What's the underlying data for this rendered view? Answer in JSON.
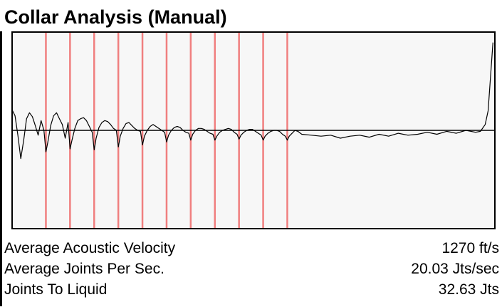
{
  "title": "Collar Analysis (Manual)",
  "colors": {
    "plot_background": "#f7f7f7",
    "trace": "#000000",
    "collar_marker": "#f07f7f",
    "baseline": "#000000"
  },
  "stats": [
    {
      "label": "Average Acoustic Velocity",
      "value": "1270 ft/s"
    },
    {
      "label": "Average Joints Per Sec.",
      "value": "20.03 Jts/sec"
    },
    {
      "label": "Joints To Liquid",
      "value": "32.63 Jts"
    }
  ],
  "chart_data": {
    "type": "line",
    "title": "",
    "xlabel": "",
    "ylabel": "",
    "xlim": [
      0,
      100
    ],
    "ylim": [
      -1,
      1
    ],
    "grid": false,
    "baseline_y": 0,
    "collar_markers_x": [
      7,
      12,
      17,
      22,
      27,
      32,
      37,
      42,
      47,
      52,
      57
    ],
    "series": [
      {
        "x": [
          0,
          0.6,
          1.2,
          1.8,
          2.4,
          3.0,
          3.6,
          4.2,
          4.8,
          5.4,
          6.0,
          6.6,
          7.0,
          7.4,
          8.0,
          8.6,
          9.2,
          9.8,
          10.4,
          11.0,
          11.6,
          12.0,
          12.4,
          13.0,
          13.6,
          14.2,
          14.8,
          15.4,
          16.0,
          16.6,
          17.0,
          17.4,
          18.0,
          18.6,
          19.2,
          19.8,
          20.4,
          21.0,
          21.6,
          22.0,
          22.4,
          23.0,
          23.6,
          24.2,
          24.8,
          25.4,
          26.0,
          26.6,
          27.0,
          27.4,
          28.0,
          28.6,
          29.2,
          29.8,
          30.4,
          31.0,
          31.6,
          32.0,
          32.4,
          33.0,
          33.6,
          34.2,
          34.8,
          35.4,
          36.0,
          36.6,
          37.0,
          37.4,
          38.0,
          38.6,
          39.2,
          39.8,
          40.4,
          41.0,
          41.6,
          42.0,
          42.4,
          43.0,
          43.6,
          44.2,
          44.8,
          45.4,
          46.0,
          46.6,
          47.0,
          47.4,
          48.0,
          48.6,
          49.2,
          49.8,
          50.4,
          51.0,
          51.6,
          52.0,
          52.4,
          53.0,
          53.6,
          54.2,
          54.8,
          55.4,
          56.0,
          56.6,
          57.0,
          57.4,
          58.0,
          58.6,
          59.2,
          60,
          62,
          64,
          66,
          68,
          70,
          72,
          74,
          76,
          78,
          80,
          82,
          84,
          86,
          88,
          90,
          92,
          94,
          96,
          97,
          98,
          98.6,
          99.1,
          99.6
        ],
        "y": [
          0.21,
          0.15,
          -0.05,
          -0.29,
          -0.1,
          0.12,
          0.18,
          0.14,
          0.05,
          -0.05,
          0.1,
          0.0,
          -0.22,
          -0.12,
          0.05,
          0.15,
          0.18,
          0.12,
          0.06,
          -0.08,
          0.08,
          -0.19,
          -0.1,
          0.02,
          0.1,
          0.12,
          0.13,
          0.1,
          0.04,
          -0.02,
          -0.2,
          -0.08,
          0.03,
          0.08,
          0.1,
          0.09,
          0.06,
          0.02,
          0.0,
          -0.17,
          -0.06,
          0.02,
          0.07,
          0.08,
          0.05,
          0.02,
          0.0,
          -0.01,
          -0.15,
          -0.06,
          0.0,
          0.04,
          0.06,
          0.04,
          0.02,
          0.0,
          -0.02,
          -0.12,
          -0.05,
          0.0,
          0.03,
          0.04,
          0.03,
          0.0,
          -0.02,
          -0.03,
          -0.1,
          -0.04,
          0.0,
          0.02,
          0.02,
          0.01,
          -0.01,
          -0.03,
          -0.04,
          -0.1,
          -0.06,
          -0.02,
          0.0,
          0.01,
          0.02,
          0.01,
          -0.02,
          -0.04,
          -0.09,
          -0.05,
          -0.02,
          0.0,
          0.01,
          0.01,
          -0.01,
          -0.03,
          -0.05,
          -0.1,
          -0.06,
          -0.03,
          -0.01,
          0.0,
          0.0,
          -0.01,
          -0.04,
          -0.06,
          -0.1,
          -0.06,
          -0.03,
          0.0,
          -0.01,
          -0.04,
          -0.05,
          -0.06,
          -0.05,
          -0.08,
          -0.06,
          -0.05,
          -0.07,
          -0.04,
          -0.06,
          -0.03,
          -0.05,
          -0.04,
          -0.02,
          -0.04,
          -0.01,
          -0.03,
          0.0,
          -0.02,
          -0.01,
          0.06,
          0.2,
          0.55,
          0.9
        ]
      }
    ]
  }
}
